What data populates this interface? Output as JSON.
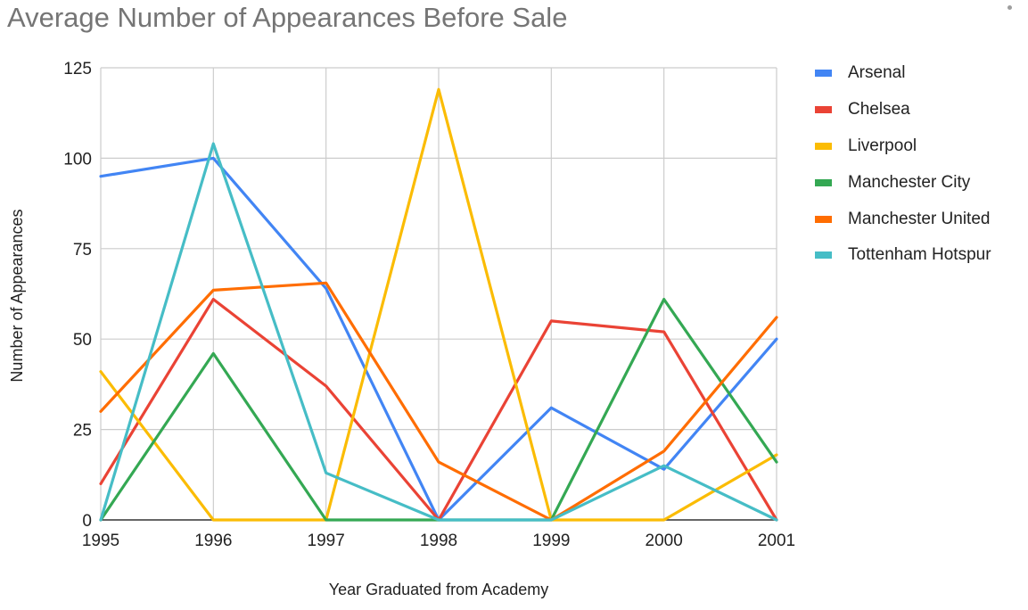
{
  "chart_data": {
    "type": "line",
    "title": "Average Number of Appearances Before Sale",
    "xlabel": "Year Graduated from Academy",
    "ylabel": "Number of Appearances",
    "x": [
      "1995",
      "1996",
      "1997",
      "1998",
      "1999",
      "2000",
      "2001"
    ],
    "ylim": [
      0,
      125
    ],
    "yticks": [
      "0",
      "25",
      "50",
      "75",
      "100",
      "125"
    ],
    "grid": true,
    "legend_position": "right",
    "series": [
      {
        "name": "Arsenal",
        "color": "#4285f4",
        "values": [
          95,
          100,
          64,
          0,
          31,
          14,
          50
        ]
      },
      {
        "name": "Chelsea",
        "color": "#ea4335",
        "values": [
          10,
          61,
          37,
          0,
          55,
          52,
          0
        ]
      },
      {
        "name": "Liverpool",
        "color": "#fbbc04",
        "values": [
          41,
          0,
          0,
          119,
          0,
          0,
          18
        ]
      },
      {
        "name": "Manchester City",
        "color": "#34a853",
        "values": [
          0,
          46,
          0,
          0,
          0,
          61,
          16
        ]
      },
      {
        "name": "Manchester United",
        "color": "#ff6d01",
        "values": [
          30,
          63.5,
          65.5,
          16,
          0,
          19,
          56
        ]
      },
      {
        "name": "Tottenham Hotspur",
        "color": "#46bdc6",
        "values": [
          0,
          104,
          13,
          0,
          0,
          15,
          0
        ]
      }
    ]
  }
}
